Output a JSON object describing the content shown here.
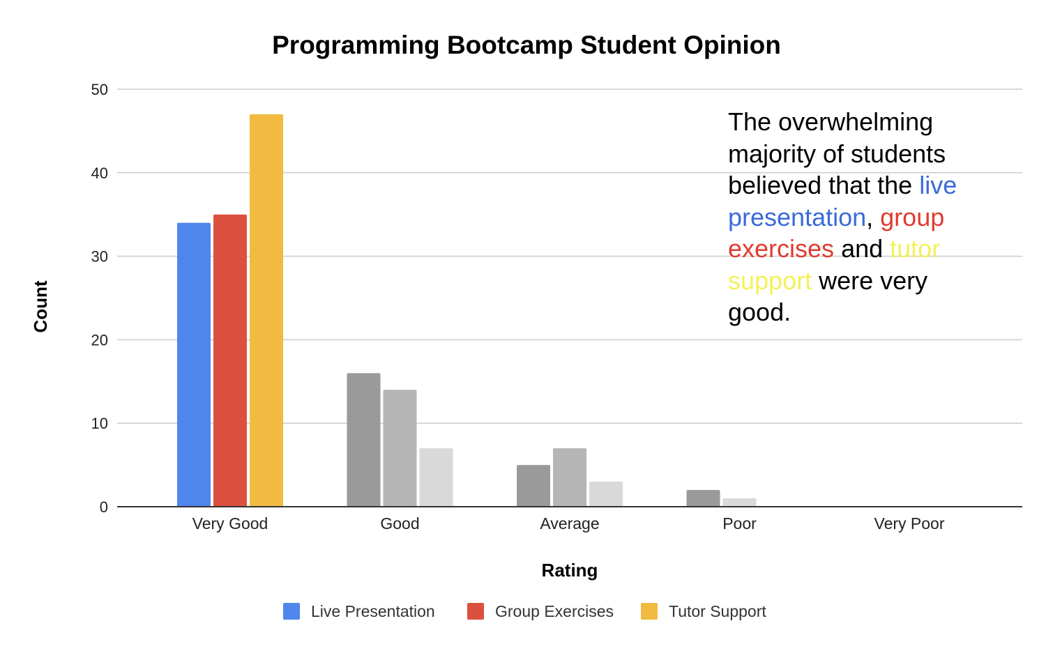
{
  "chart_data": {
    "type": "bar",
    "title": "Programming Bootcamp Student Opinion",
    "xlabel": "Rating",
    "ylabel": "Count",
    "ylim": [
      0,
      50
    ],
    "yticks": [
      0,
      10,
      20,
      30,
      40,
      50
    ],
    "grid": true,
    "legend_position": "bottom",
    "categories": [
      "Very Good",
      "Good",
      "Average",
      "Poor",
      "Very Poor"
    ],
    "series": [
      {
        "name": "Live Presentation",
        "color": "#4f86ec",
        "values": [
          34,
          16,
          5,
          2,
          0
        ]
      },
      {
        "name": "Group Exercises",
        "color": "#dc5040",
        "values": [
          35,
          14,
          7,
          0,
          0
        ]
      },
      {
        "name": "Tutor Support",
        "color": "#f1bb42",
        "values": [
          47,
          7,
          3,
          1,
          0
        ]
      }
    ],
    "highlighted_category": "Very Good",
    "muted_colors": [
      "#9a9a9a",
      "#b5b5b5",
      "#d9d9d9"
    ],
    "annotation": {
      "parts": [
        {
          "text": "The overwhelming majority of students believed that the ",
          "color": "#000000"
        },
        {
          "text": "live presentation",
          "color": "#3b6ad8"
        },
        {
          "text": ", ",
          "color": "#000000"
        },
        {
          "text": "group exercises",
          "color": "#e03b2f"
        },
        {
          "text": " and ",
          "color": "#000000"
        },
        {
          "text": "tutor support",
          "color": "#f4f05a"
        },
        {
          "text": " were very good.",
          "color": "#000000"
        }
      ]
    }
  }
}
